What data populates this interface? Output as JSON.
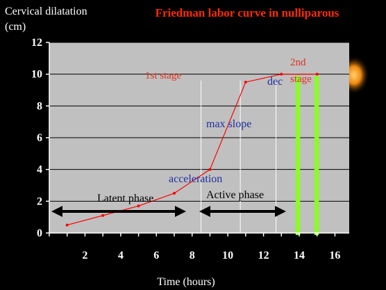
{
  "chart_data": {
    "type": "line",
    "title": "Friedman labor curve in nulliparous",
    "ylabel": "Cervical dilatation (cm)",
    "ylabel_lines": [
      "Cervical dilatation",
      "(cm)"
    ],
    "xlabel": "Time (hours)",
    "xlim": [
      0,
      16.8
    ],
    "ylim": [
      0,
      12
    ],
    "x_ticks": [
      2,
      4,
      6,
      8,
      10,
      12,
      14,
      16
    ],
    "y_ticks": [
      0,
      2,
      4,
      6,
      8,
      10,
      12
    ],
    "grid": "horizontal",
    "series": [
      {
        "x": [
          1,
          3,
          5,
          7,
          9,
          11,
          13,
          15
        ],
        "y": [
          0.5,
          1.1,
          1.7,
          2.5,
          4.0,
          9.5,
          10.0,
          10.0
        ]
      }
    ],
    "annotations": {
      "first_stage": "1st stage",
      "second_stage_lines": [
        "2nd",
        "stage"
      ],
      "dec": "dec",
      "max_slope": "max slope",
      "acceleration": "acceleration",
      "latent_phase": "Latent phase",
      "active_phase": "Active phase"
    },
    "colors": {
      "background": "#000000",
      "plot_area": "#c0c0c0",
      "line": "#ff0000",
      "title": "#ff2a00",
      "stage_label": "#e0301e",
      "phase_label_blue": "#1f2f9f",
      "marker_bar": "#88ff22",
      "axis": "#ffffff",
      "arrow": "#000000"
    }
  }
}
